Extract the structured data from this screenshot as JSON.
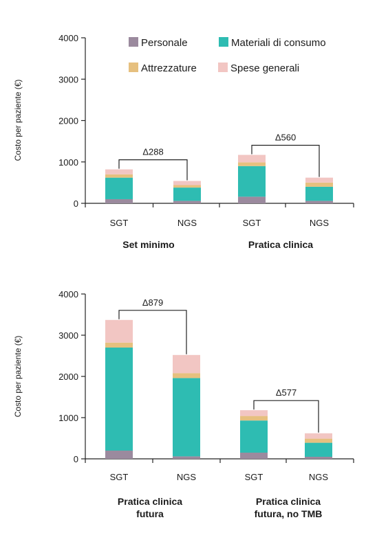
{
  "legend": [
    {
      "name": "Personale",
      "color": "#9b8a9e"
    },
    {
      "name": "Materiali di consumo",
      "color": "#2ebcb2"
    },
    {
      "name": "Attrezzature",
      "color": "#e6c07f"
    },
    {
      "name": "Spese generali",
      "color": "#f2c6c3"
    }
  ],
  "chart_data": [
    {
      "type": "bar",
      "stacked": true,
      "ylabel": "Costo per paziente (€)",
      "ylim": [
        0,
        4000
      ],
      "yticks": [
        "0",
        "1000",
        "2000",
        "3000",
        "4000"
      ],
      "categories": [
        "SGT",
        "NGS",
        "SGT",
        "NGS"
      ],
      "groups": [
        "Set minimo",
        "Pratica clinica"
      ],
      "series": [
        {
          "name": "Personale",
          "values": [
            100,
            60,
            160,
            60
          ]
        },
        {
          "name": "Materiali di consumo",
          "values": [
            520,
            320,
            740,
            340
          ]
        },
        {
          "name": "Attrezzature",
          "values": [
            80,
            60,
            90,
            100
          ]
        },
        {
          "name": "Spese generali",
          "values": [
            120,
            100,
            180,
            120
          ]
        }
      ],
      "annotations": [
        {
          "label": "Δ288",
          "from_bar": 0,
          "to_bar": 1
        },
        {
          "label": "Δ560",
          "from_bar": 2,
          "to_bar": 3
        }
      ],
      "legend_position": "top"
    },
    {
      "type": "bar",
      "stacked": true,
      "ylabel": "Costo per paziente (€)",
      "ylim": [
        0,
        4000
      ],
      "yticks": [
        "0",
        "1000",
        "2000",
        "3000",
        "4000"
      ],
      "categories": [
        "SGT",
        "NGS",
        "SGT",
        "NGS"
      ],
      "groups": [
        "Pratica clinica\nfutura",
        "Pratica clinica\nfutura, no TMB"
      ],
      "series": [
        {
          "name": "Personale",
          "values": [
            200,
            60,
            150,
            50
          ]
        },
        {
          "name": "Materiali di consumo",
          "values": [
            2500,
            1900,
            780,
            340
          ]
        },
        {
          "name": "Attrezzature",
          "values": [
            120,
            120,
            110,
            100
          ]
        },
        {
          "name": "Spese generali",
          "values": [
            550,
            440,
            140,
            130
          ]
        }
      ],
      "annotations": [
        {
          "label": "Δ879",
          "from_bar": 0,
          "to_bar": 1
        },
        {
          "label": "Δ577",
          "from_bar": 2,
          "to_bar": 3
        }
      ]
    }
  ]
}
